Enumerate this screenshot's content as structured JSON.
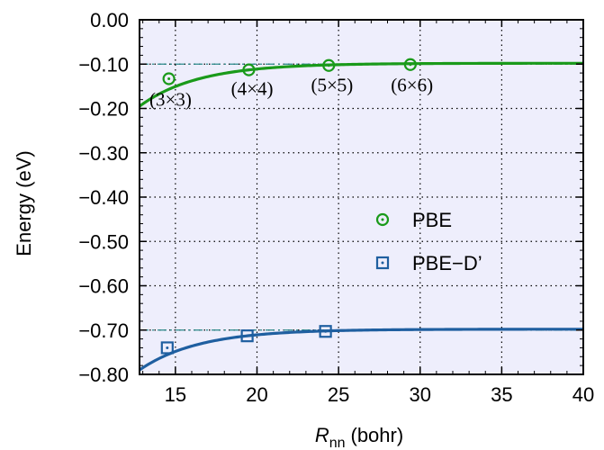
{
  "chart_data": {
    "type": "scatter",
    "xlabel_main": "R",
    "xlabel_sub": "nn",
    "xlabel_unit": "(bohr)",
    "ylabel": "Energy (eV)",
    "xlim": [
      12.8,
      40
    ],
    "ylim": [
      -0.8,
      0.0
    ],
    "xticks": [
      15,
      20,
      25,
      30,
      35,
      40
    ],
    "yticks": [
      0.0,
      -0.1,
      -0.2,
      -0.3,
      -0.4,
      -0.5,
      -0.6,
      -0.7,
      -0.8
    ],
    "ytick_labels": [
      "0.00",
      "−0.10",
      "−0.20",
      "−0.30",
      "−0.40",
      "−0.50",
      "−0.60",
      "−0.70",
      "−0.80"
    ],
    "grid": "dotted",
    "legend_position": "center-right",
    "series": [
      {
        "name": "PBE",
        "marker": "circle-dot",
        "color": "#1a9a1a",
        "points": [
          {
            "x": 14.6,
            "y": -0.133
          },
          {
            "x": 19.5,
            "y": -0.113
          },
          {
            "x": 24.4,
            "y": -0.103
          },
          {
            "x": 29.4,
            "y": -0.101
          }
        ],
        "fit_asymptote": -0.098,
        "fit_start_y": -0.195,
        "reference_level": -0.1
      },
      {
        "name": "PBE−D’",
        "marker": "square-dot",
        "color": "#1f5fa0",
        "points": [
          {
            "x": 14.5,
            "y": -0.74
          },
          {
            "x": 19.4,
            "y": -0.713
          },
          {
            "x": 24.2,
            "y": -0.703
          }
        ],
        "fit_asymptote": -0.698,
        "fit_start_y": -0.79,
        "reference_level": -0.7
      }
    ],
    "annotations": [
      {
        "text": "(3×3)",
        "x": 14.7,
        "y": -0.18
      },
      {
        "text": "(4×4)",
        "x": 19.7,
        "y": -0.155
      },
      {
        "text": "(5×5)",
        "x": 24.6,
        "y": -0.147
      },
      {
        "text": "(6×6)",
        "x": 29.5,
        "y": -0.147
      }
    ],
    "plot_bg": "#eeeefc",
    "ref_line_color": "#2a8a8a"
  }
}
